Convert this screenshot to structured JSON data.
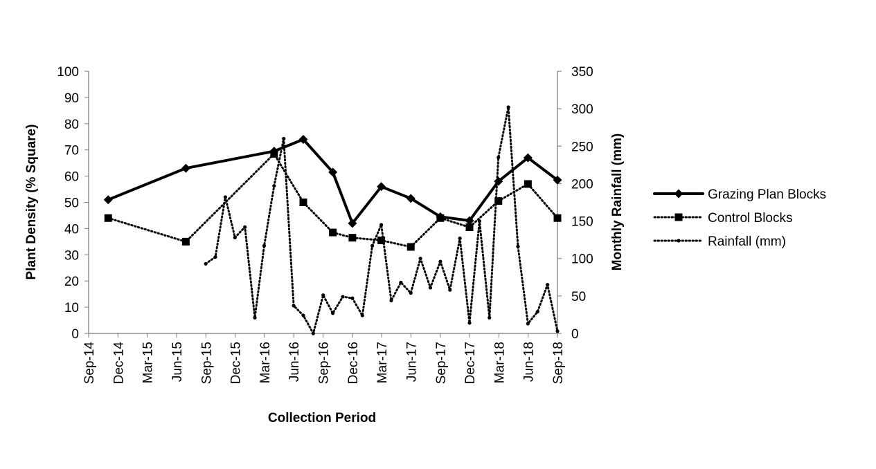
{
  "chart_data": {
    "type": "line",
    "x_axis": {
      "label": "Collection Period",
      "ticks": [
        "Sep-14",
        "Dec-14",
        "Mar-15",
        "Jun-15",
        "Sep-15",
        "Dec-15",
        "Mar-16",
        "Jun-16",
        "Sep-16",
        "Dec-16",
        "Mar-17",
        "Jun-17",
        "Sep-17",
        "Dec-17",
        "Mar-18",
        "Jun-18",
        "Sep-18"
      ],
      "range": [
        "2014-09-01",
        "2018-09-01"
      ]
    },
    "y_axis_left": {
      "label": "Plant Density (% Square)",
      "ylim": [
        0,
        100
      ],
      "ticks": [
        0,
        10,
        20,
        30,
        40,
        50,
        60,
        70,
        80,
        90,
        100
      ]
    },
    "y_axis_right": {
      "label": "Monthly Rainfall (mm)",
      "ylim": [
        0,
        350
      ],
      "ticks": [
        0,
        50,
        100,
        150,
        200,
        250,
        300,
        350
      ]
    },
    "grid": false,
    "legend_position": "right",
    "series": [
      {
        "name": "Grazing Plan Blocks",
        "axis": "left",
        "style": "solid",
        "marker": "diamond",
        "color": "#000000",
        "points": [
          [
            "2014-11-01",
            51
          ],
          [
            "2015-07-01",
            63
          ],
          [
            "2016-04-01",
            69.5
          ],
          [
            "2016-07-01",
            74
          ],
          [
            "2016-10-01",
            61.5
          ],
          [
            "2016-12-01",
            42
          ],
          [
            "2017-03-01",
            56
          ],
          [
            "2017-06-01",
            51.5
          ],
          [
            "2017-09-01",
            44.5
          ],
          [
            "2017-12-01",
            43
          ],
          [
            "2018-03-01",
            58
          ],
          [
            "2018-06-01",
            67
          ],
          [
            "2018-09-01",
            58.5
          ]
        ]
      },
      {
        "name": "Control Blocks",
        "axis": "left",
        "style": "dotted",
        "marker": "square",
        "color": "#000000",
        "points": [
          [
            "2014-11-01",
            44
          ],
          [
            "2015-07-01",
            35
          ],
          [
            "2016-04-01",
            68.5
          ],
          [
            "2016-07-01",
            50
          ],
          [
            "2016-10-01",
            38.5
          ],
          [
            "2016-12-01",
            36.5
          ],
          [
            "2017-03-01",
            35.5
          ],
          [
            "2017-06-01",
            33
          ],
          [
            "2017-09-01",
            44
          ],
          [
            "2017-12-01",
            40.5
          ],
          [
            "2018-03-01",
            50.5
          ],
          [
            "2018-06-01",
            57
          ],
          [
            "2018-09-01",
            44
          ]
        ]
      },
      {
        "name": "Rainfall (mm)",
        "axis": "right",
        "style": "dotted",
        "marker": "dot",
        "color": "#000000",
        "points": [
          [
            "2015-09-01",
            93
          ],
          [
            "2015-10-01",
            102
          ],
          [
            "2015-11-01",
            182
          ],
          [
            "2015-12-01",
            128
          ],
          [
            "2016-01-01",
            142
          ],
          [
            "2016-02-01",
            21
          ],
          [
            "2016-03-01",
            117
          ],
          [
            "2016-04-01",
            197
          ],
          [
            "2016-05-01",
            260
          ],
          [
            "2016-06-01",
            37
          ],
          [
            "2016-07-01",
            24
          ],
          [
            "2016-08-01",
            0
          ],
          [
            "2016-09-01",
            51
          ],
          [
            "2016-10-01",
            27
          ],
          [
            "2016-11-01",
            49
          ],
          [
            "2016-12-01",
            47
          ],
          [
            "2017-01-01",
            24
          ],
          [
            "2017-02-01",
            117
          ],
          [
            "2017-03-01",
            145
          ],
          [
            "2017-04-01",
            44
          ],
          [
            "2017-05-01",
            68
          ],
          [
            "2017-06-01",
            54
          ],
          [
            "2017-07-01",
            100
          ],
          [
            "2017-08-01",
            61
          ],
          [
            "2017-09-01",
            96
          ],
          [
            "2017-10-01",
            58
          ],
          [
            "2017-11-01",
            127
          ],
          [
            "2017-12-01",
            14
          ],
          [
            "2018-01-01",
            150
          ],
          [
            "2018-02-01",
            21
          ],
          [
            "2018-03-01",
            235
          ],
          [
            "2018-04-01",
            302
          ],
          [
            "2018-05-01",
            116
          ],
          [
            "2018-06-01",
            13
          ],
          [
            "2018-07-01",
            29
          ],
          [
            "2018-08-01",
            65
          ],
          [
            "2018-09-01",
            3
          ]
        ]
      }
    ]
  }
}
